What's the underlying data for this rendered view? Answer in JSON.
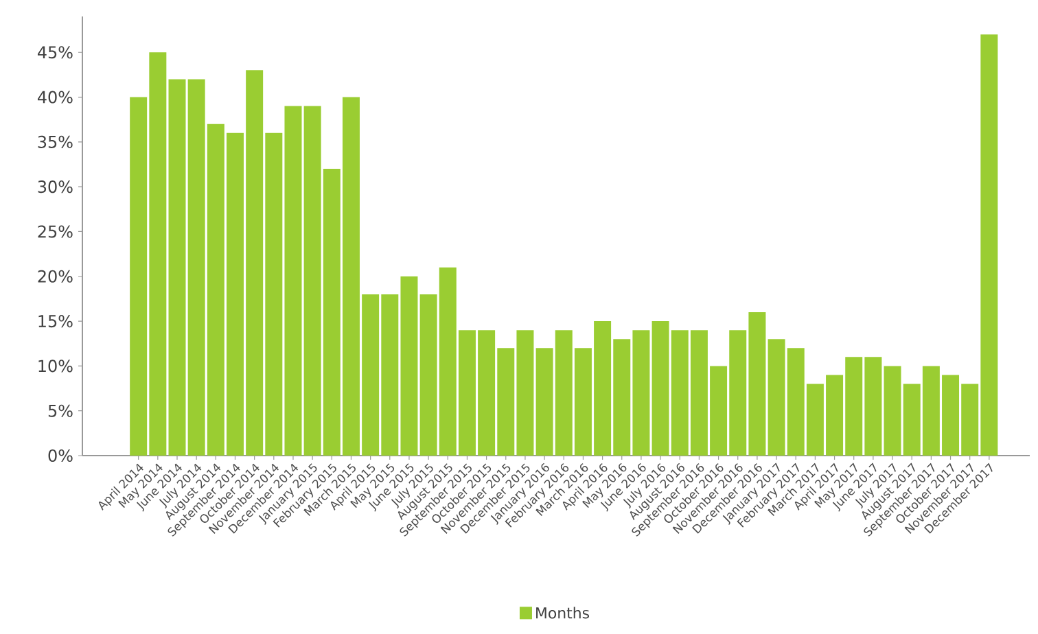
{
  "chart_data": {
    "type": "bar",
    "categories": [
      "April 2014",
      "May 2014",
      "June 2014",
      "July 2014",
      "August 2014",
      "September 2014",
      "October 2014",
      "November 2014",
      "December 2014",
      "January 2015",
      "February 2015",
      "March 2015",
      "April 2015",
      "May 2015",
      "June 2015",
      "July 2015",
      "August 2015",
      "September 2015",
      "October 2015",
      "November 2015",
      "December 2015",
      "January 2016",
      "February 2016",
      "March 2016",
      "April 2016",
      "May 2016",
      "June 2016",
      "July 2016",
      "August 2016",
      "September 2016",
      "October 2016",
      "November 2016",
      "December 2016",
      "January 2017",
      "February 2017",
      "March 2017",
      "April 2017",
      "May 2017",
      "June 2017",
      "July 2017",
      "August 2017",
      "September 2017",
      "October 2017",
      "November 2017",
      "December 2017"
    ],
    "series": [
      {
        "name": "Months",
        "color": "#9acd32",
        "values": [
          40,
          45,
          42,
          42,
          37,
          36,
          43,
          36,
          39,
          39,
          32,
          40,
          18,
          18,
          20,
          18,
          21,
          14,
          14,
          12,
          14,
          12,
          14,
          12,
          15,
          13,
          14,
          15,
          14,
          14,
          10,
          14,
          16,
          13,
          12,
          8,
          9,
          11,
          11,
          10,
          8,
          10,
          9,
          8,
          47
        ]
      }
    ],
    "ylim": [
      0,
      49
    ],
    "yticks": [
      {
        "value": 0,
        "label": "0%"
      },
      {
        "value": 5,
        "label": "5%"
      },
      {
        "value": 10,
        "label": "10%"
      },
      {
        "value": 15,
        "label": "15%"
      },
      {
        "value": 20,
        "label": "20%"
      },
      {
        "value": 25,
        "label": "25%"
      },
      {
        "value": 30,
        "label": "30%"
      },
      {
        "value": 35,
        "label": "35%"
      },
      {
        "value": 40,
        "label": "40%"
      },
      {
        "value": 45,
        "label": "45%"
      }
    ],
    "legend": "bottom"
  }
}
